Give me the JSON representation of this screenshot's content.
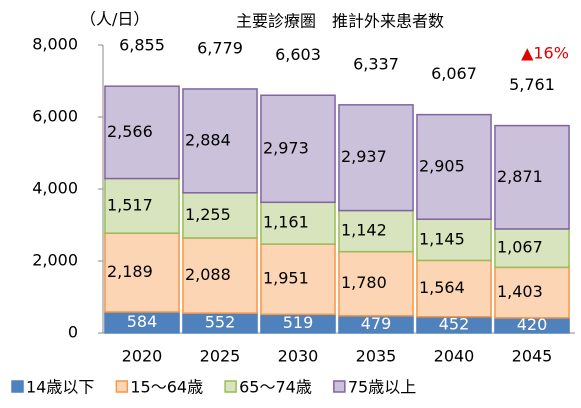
{
  "chart_data": {
    "type": "stacked_bar",
    "title": "主要診療圏　推計外来患者数",
    "unit_label": "（人/日）",
    "annotation": "▲16%",
    "categories": [
      "2020",
      "2025",
      "2030",
      "2035",
      "2040",
      "2045"
    ],
    "series": [
      {
        "name": "14歳以下",
        "color": "#4f81bd",
        "values": [
          584,
          552,
          519,
          479,
          452,
          420
        ]
      },
      {
        "name": "15〜64歳",
        "color": "#fcd5b5",
        "values": [
          2189,
          2088,
          1951,
          1780,
          1564,
          1403
        ],
        "value_labels": [
          "2,189",
          "2,088",
          "1,951",
          "1,780",
          "1,564",
          "1,403"
        ]
      },
      {
        "name": "65〜74歳",
        "color": "#d7e4bd",
        "values": [
          1517,
          1255,
          1161,
          1142,
          1145,
          1067
        ],
        "value_labels": [
          "1,517",
          "1,255",
          "1,161",
          "1,142",
          "1,145",
          "1,067"
        ]
      },
      {
        "name": "75歳以上",
        "color": "#ccc1da",
        "values": [
          2566,
          2884,
          2973,
          2937,
          2905,
          2871
        ],
        "value_labels": [
          "2,566",
          "2,884",
          "2,973",
          "2,937",
          "2,905",
          "2,871"
        ]
      }
    ],
    "totals": [
      {
        "value": 6855,
        "label": "6,855"
      },
      {
        "value": 6779,
        "label": "6,779"
      },
      {
        "value": 6603,
        "label": "6,603"
      },
      {
        "value": 6337,
        "label": "6,337"
      },
      {
        "value": 6067,
        "label": "6,067"
      },
      {
        "value": 5761,
        "label": "5,761"
      }
    ],
    "ylim": [
      0,
      8000
    ],
    "yticks": [
      0,
      {
        "value": 2000,
        "label": "2,000"
      },
      {
        "value": 4000,
        "label": "4,000"
      },
      {
        "value": 6000,
        "label": "6,000"
      },
      {
        "value": 8000,
        "label": "8,000"
      }
    ]
  }
}
